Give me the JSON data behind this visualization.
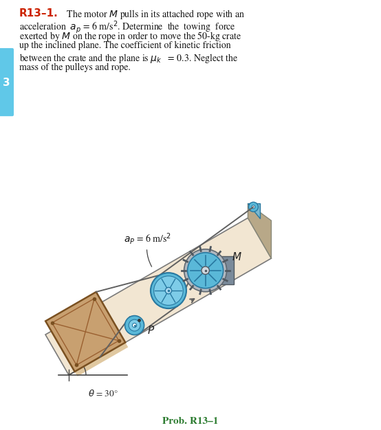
{
  "title_label": "R13–1.",
  "title_color": "#cc2200",
  "body_text_lines": [
    "  The motor $\\mathit{M}$ pulls in its attached rope with an",
    "acceleration  $a_p$ = 6 m/s$^2$. Determine  the  towing  force",
    "exerted by $\\mathit{M}$ on the rope in order to move the 50-kg crate",
    "up the inclined plane. The coefficient of kinetic friction",
    "between the crate and the plane is $\\mu_k$   = 0.3. Neglect the",
    "mass of the pulleys and rope."
  ],
  "prob_label": "Prob. R13–1",
  "prob_color": "#2e7d32",
  "page_tab_color": "#60c8e8",
  "page_tab_number": "3",
  "theta_deg": 30,
  "bg_color": "#ffffff",
  "incline_face_color": "#f2e6d2",
  "incline_edge_color": "#7a7a7a",
  "crate_face_color": "#c8a070",
  "crate_edge_color": "#7a5020",
  "crate_brace_color": "#9a6030",
  "pulley_face_color": "#5ab8d8",
  "pulley_edge_color": "#2878a0",
  "pulley_hub_color": "#d8f0f8",
  "rope_color": "#606060",
  "motor_body_color": "#7a8a9a",
  "motor_face_color": "#5ab8d8",
  "wall_color": "#b8a888",
  "wall_edge_color": "#888878",
  "shadow_color": "#e0c8a0",
  "ap_label": "$a_P$ = 6 m/s$^2$",
  "M_label": "$M$",
  "P_label": "$P$",
  "theta_label": "$\\theta$ = 30°"
}
